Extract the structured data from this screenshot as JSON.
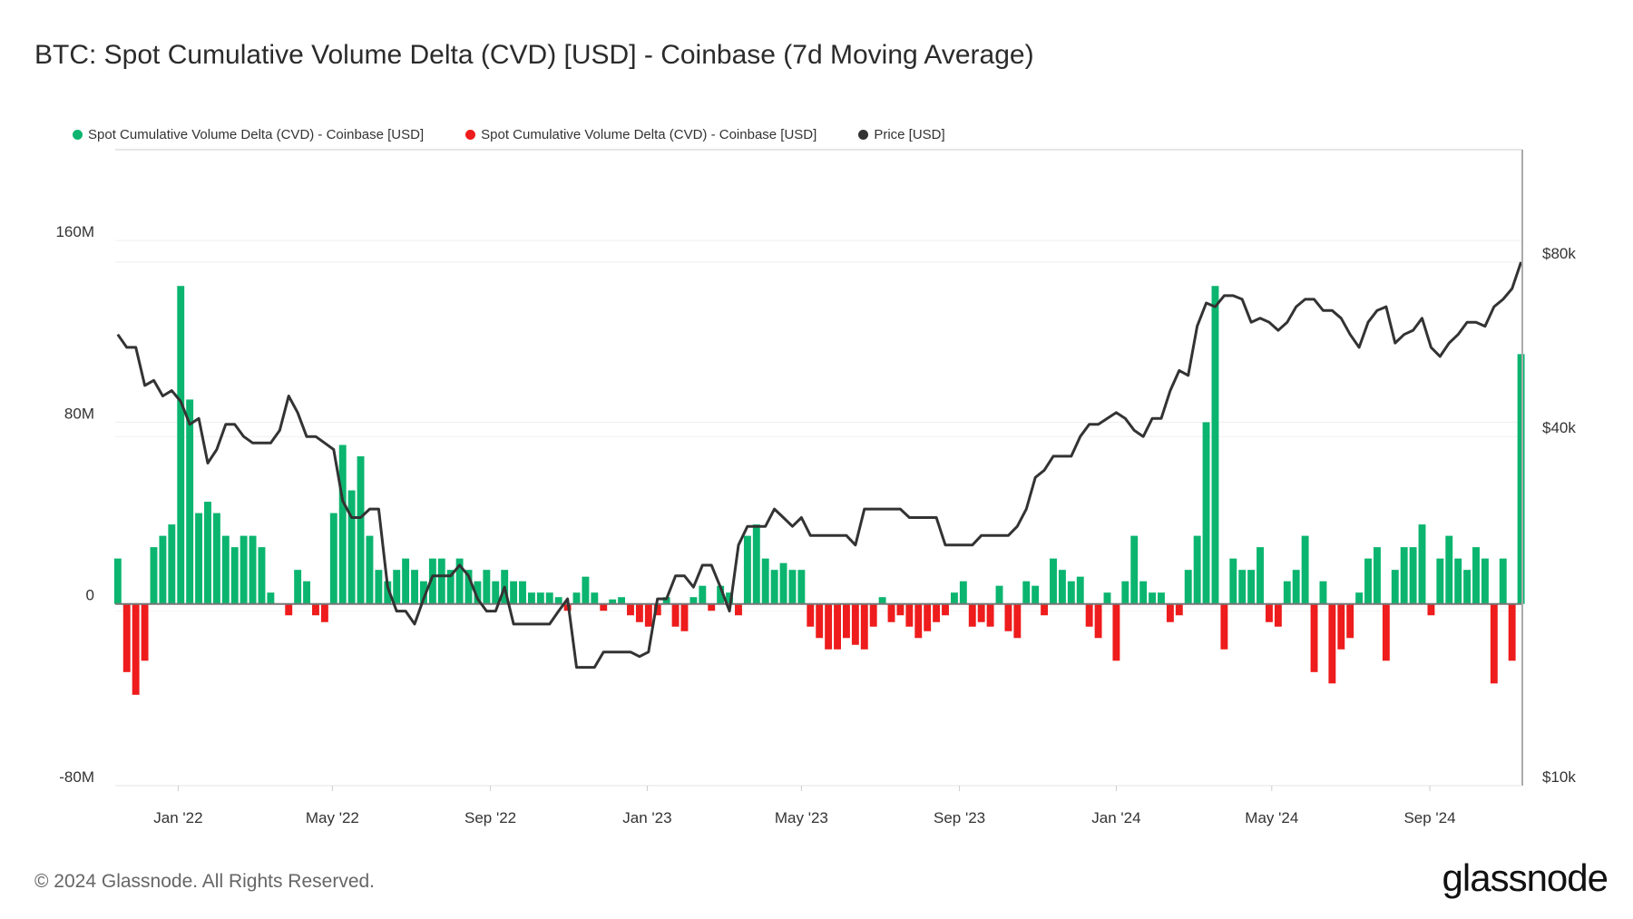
{
  "title": "BTC: Spot Cumulative Volume Delta (CVD) [USD] - Coinbase (7d Moving Average)",
  "legend": [
    {
      "label": "Spot Cumulative Volume Delta (CVD) - Coinbase [USD]",
      "color": "#0bb56f"
    },
    {
      "label": "Spot Cumulative Volume Delta (CVD) - Coinbase [USD]",
      "color": "#ee1c1c"
    },
    {
      "label": "Price [USD]",
      "color": "#333333"
    }
  ],
  "footer": "© 2024 Glassnode. All Rights Reserved.",
  "logo": "glassnode",
  "chart_data": {
    "type": "bar+line",
    "x_range": [
      "2021-11-13",
      "2024-11-12"
    ],
    "x_ticks": [
      {
        "date": "2022-01-01",
        "label": "Jan '22"
      },
      {
        "date": "2022-05-01",
        "label": "May '22"
      },
      {
        "date": "2022-09-01",
        "label": "Sep '22"
      },
      {
        "date": "2023-01-01",
        "label": "Jan '23"
      },
      {
        "date": "2023-05-01",
        "label": "May '23"
      },
      {
        "date": "2023-09-01",
        "label": "Sep '23"
      },
      {
        "date": "2024-01-01",
        "label": "Jan '24"
      },
      {
        "date": "2024-05-01",
        "label": "May '24"
      },
      {
        "date": "2024-09-01",
        "label": "Sep '24"
      }
    ],
    "y_left": {
      "scale": "linear",
      "unit": "USD",
      "range": [
        -80,
        200
      ],
      "ticks": [
        {
          "v": 160,
          "label": "160M"
        },
        {
          "v": 80,
          "label": "80M"
        },
        {
          "v": 0,
          "label": "0"
        },
        {
          "v": -80,
          "label": "-80M"
        }
      ]
    },
    "y_right": {
      "scale": "log",
      "unit": "USD",
      "range": [
        10000,
        125000
      ],
      "ticks": [
        {
          "v": 80000,
          "label": "$80k"
        },
        {
          "v": 40000,
          "label": "$40k"
        },
        {
          "v": 10000,
          "label": "$10k"
        }
      ]
    },
    "grid": true,
    "legend_position": "top-left",
    "x": [
      "2021-11-15",
      "2021-11-22",
      "2021-11-29",
      "2021-12-06",
      "2021-12-13",
      "2021-12-20",
      "2021-12-27",
      "2022-01-03",
      "2022-01-10",
      "2022-01-17",
      "2022-01-24",
      "2022-01-31",
      "2022-02-07",
      "2022-02-14",
      "2022-02-21",
      "2022-02-28",
      "2022-03-07",
      "2022-03-14",
      "2022-03-21",
      "2022-03-28",
      "2022-04-04",
      "2022-04-11",
      "2022-04-18",
      "2022-04-25",
      "2022-05-02",
      "2022-05-09",
      "2022-05-16",
      "2022-05-23",
      "2022-05-30",
      "2022-06-06",
      "2022-06-13",
      "2022-06-20",
      "2022-06-27",
      "2022-07-04",
      "2022-07-11",
      "2022-07-18",
      "2022-07-25",
      "2022-08-01",
      "2022-08-08",
      "2022-08-15",
      "2022-08-22",
      "2022-08-29",
      "2022-09-05",
      "2022-09-12",
      "2022-09-19",
      "2022-09-26",
      "2022-10-03",
      "2022-10-10",
      "2022-10-17",
      "2022-10-24",
      "2022-10-31",
      "2022-11-07",
      "2022-11-14",
      "2022-11-21",
      "2022-11-28",
      "2022-12-05",
      "2022-12-12",
      "2022-12-19",
      "2022-12-26",
      "2023-01-02",
      "2023-01-09",
      "2023-01-16",
      "2023-01-23",
      "2023-01-30",
      "2023-02-06",
      "2023-02-13",
      "2023-02-20",
      "2023-02-27",
      "2023-03-06",
      "2023-03-13",
      "2023-03-20",
      "2023-03-27",
      "2023-04-03",
      "2023-04-10",
      "2023-04-17",
      "2023-04-24",
      "2023-05-01",
      "2023-05-08",
      "2023-05-15",
      "2023-05-22",
      "2023-05-29",
      "2023-06-05",
      "2023-06-12",
      "2023-06-19",
      "2023-06-26",
      "2023-07-03",
      "2023-07-10",
      "2023-07-17",
      "2023-07-24",
      "2023-07-31",
      "2023-08-07",
      "2023-08-14",
      "2023-08-21",
      "2023-08-28",
      "2023-09-04",
      "2023-09-11",
      "2023-09-18",
      "2023-09-25",
      "2023-10-02",
      "2023-10-09",
      "2023-10-16",
      "2023-10-23",
      "2023-10-30",
      "2023-11-06",
      "2023-11-13",
      "2023-11-20",
      "2023-11-27",
      "2023-12-04",
      "2023-12-11",
      "2023-12-18",
      "2023-12-25",
      "2024-01-01",
      "2024-01-08",
      "2024-01-15",
      "2024-01-22",
      "2024-01-29",
      "2024-02-05",
      "2024-02-12",
      "2024-02-19",
      "2024-02-26",
      "2024-03-04",
      "2024-03-11",
      "2024-03-18",
      "2024-03-25",
      "2024-04-01",
      "2024-04-08",
      "2024-04-15",
      "2024-04-22",
      "2024-04-29",
      "2024-05-06",
      "2024-05-13",
      "2024-05-20",
      "2024-05-27",
      "2024-06-03",
      "2024-06-10",
      "2024-06-17",
      "2024-06-24",
      "2024-07-01",
      "2024-07-08",
      "2024-07-15",
      "2024-07-22",
      "2024-07-29",
      "2024-08-05",
      "2024-08-12",
      "2024-08-19",
      "2024-08-26",
      "2024-09-02",
      "2024-09-09",
      "2024-09-16",
      "2024-09-23",
      "2024-09-30",
      "2024-10-07",
      "2024-10-14",
      "2024-10-21",
      "2024-10-28",
      "2024-11-04",
      "2024-11-11"
    ],
    "series": [
      {
        "name": "Spot Cumulative Volume Delta (CVD) - Coinbase [USD]",
        "axis": "left",
        "unit": "M USD",
        "kind": "bar",
        "values": [
          20,
          -30,
          -40,
          -25,
          25,
          30,
          35,
          140,
          90,
          40,
          45,
          40,
          30,
          25,
          30,
          30,
          25,
          5,
          0,
          -5,
          15,
          10,
          -5,
          -8,
          40,
          70,
          50,
          65,
          30,
          15,
          10,
          15,
          20,
          15,
          10,
          20,
          20,
          15,
          20,
          15,
          10,
          15,
          10,
          15,
          10,
          10,
          5,
          5,
          5,
          3,
          -3,
          5,
          12,
          5,
          -3,
          2,
          3,
          -5,
          -8,
          -10,
          -5,
          3,
          -10,
          -12,
          3,
          8,
          -3,
          8,
          5,
          -5,
          30,
          35,
          20,
          15,
          18,
          15,
          15,
          -10,
          -15,
          -20,
          -20,
          -15,
          -18,
          -20,
          -10,
          3,
          -8,
          -5,
          -10,
          -15,
          -12,
          -8,
          -5,
          5,
          10,
          -10,
          -8,
          -10,
          8,
          -12,
          -15,
          10,
          8,
          -5,
          20,
          15,
          10,
          12,
          -10,
          -15,
          5,
          -25,
          10,
          30,
          10,
          5,
          5,
          -8,
          -5,
          15,
          30,
          80,
          140,
          -20,
          20,
          15,
          15,
          25,
          -8,
          -10,
          10,
          15,
          30,
          -30,
          10,
          -35,
          -20,
          -15,
          5,
          20,
          25,
          -25,
          15,
          25,
          25,
          35,
          -5,
          20,
          30,
          20,
          15,
          25,
          20,
          -35,
          20,
          -25,
          110
        ]
      },
      {
        "name": "Price [USD]",
        "axis": "right",
        "unit": "k USD",
        "kind": "line",
        "values": [
          60,
          57,
          57,
          49,
          50,
          47,
          48,
          46,
          42,
          43,
          36,
          38,
          42,
          42,
          40,
          39,
          39,
          39,
          41,
          47,
          44,
          40,
          40,
          39,
          38,
          31,
          29,
          29,
          30,
          30,
          22,
          20,
          20,
          19,
          21,
          23,
          23,
          23,
          24,
          23,
          21,
          20,
          20,
          22,
          19,
          19,
          19,
          19,
          19,
          20,
          21,
          16,
          16,
          16,
          17,
          17,
          17,
          17,
          16.7,
          17,
          21,
          21,
          23,
          23,
          22,
          24,
          24,
          22,
          20,
          26,
          28,
          28,
          28,
          30,
          29,
          28,
          29,
          27,
          27,
          27,
          27,
          27,
          26,
          30,
          30,
          30,
          30,
          30,
          29,
          29,
          29,
          29,
          26,
          26,
          26,
          26,
          27,
          27,
          27,
          27,
          28,
          30,
          34,
          35,
          37,
          37,
          37,
          40,
          42,
          42,
          43,
          44,
          43,
          41,
          40,
          43,
          43,
          48,
          52,
          51,
          62,
          68,
          67,
          70,
          70,
          69,
          63,
          64,
          63,
          61,
          63,
          67,
          69,
          69,
          66,
          66,
          64,
          60,
          57,
          63,
          66,
          67,
          58,
          60,
          61,
          64,
          57,
          55,
          58,
          60,
          63,
          63,
          62,
          67,
          69,
          72,
          80
        ]
      }
    ]
  }
}
